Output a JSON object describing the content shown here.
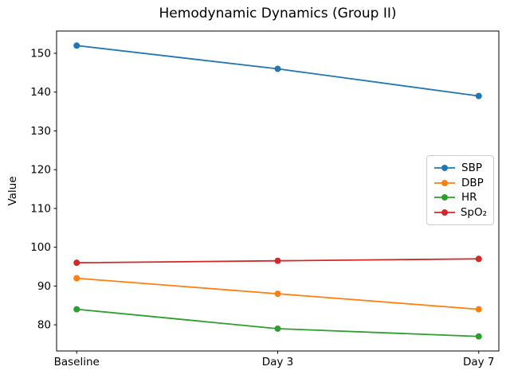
{
  "chart_data": {
    "type": "line",
    "title": "Hemodynamic Dynamics (Group II)",
    "xlabel": "",
    "ylabel": "Value",
    "categories": [
      "Baseline",
      "Day 3",
      "Day 7"
    ],
    "series": [
      {
        "name": "SBP",
        "color": "#1f77b4",
        "values": [
          152,
          146,
          139
        ]
      },
      {
        "name": "DBP",
        "color": "#ff7f0e",
        "values": [
          92,
          88,
          84
        ]
      },
      {
        "name": "HR",
        "color": "#2ca02c",
        "values": [
          84,
          79,
          77
        ]
      },
      {
        "name": "SpO₂",
        "color": "#d62728",
        "values": [
          96,
          96.5,
          97
        ]
      }
    ],
    "yticks": [
      80,
      90,
      100,
      110,
      120,
      130,
      140,
      150
    ],
    "ylim": [
      73.25,
      155.75
    ],
    "grid": false,
    "legend_position": "center right",
    "marker": "circle",
    "axis_color": "#000000",
    "legend_border_color": "#cccccc"
  }
}
